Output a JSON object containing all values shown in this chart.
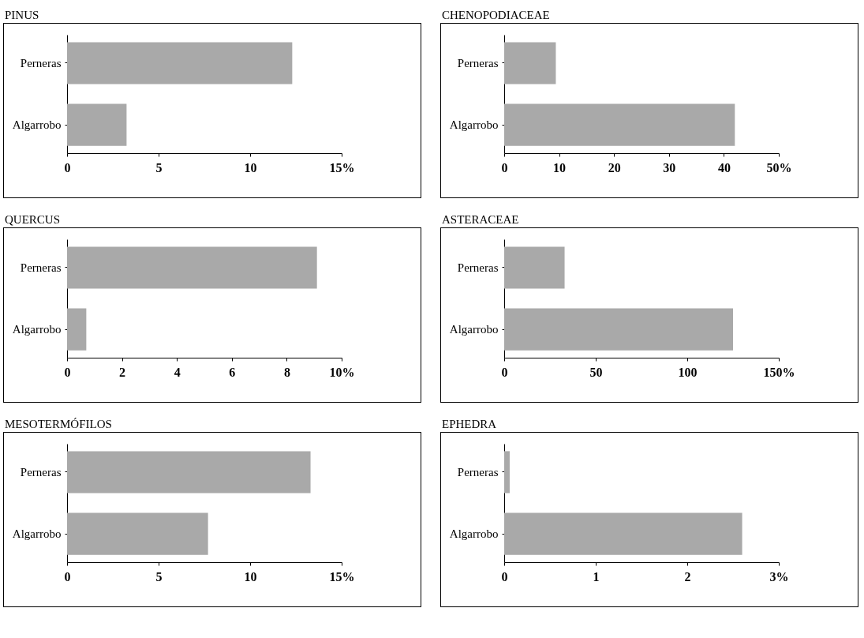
{
  "chart_data": [
    {
      "type": "bar",
      "orientation": "horizontal",
      "title": "PINUS",
      "categories": [
        "Perneras",
        "Algarrobo"
      ],
      "values": [
        12.3,
        3.25
      ],
      "color": "#a9a9a9",
      "xlim": [
        0,
        15
      ],
      "xticks": [
        0,
        5,
        10,
        {
          "value": 15,
          "label": "15%"
        }
      ]
    },
    {
      "type": "bar",
      "orientation": "horizontal",
      "title": "CHENOPODIACEAE",
      "categories": [
        "Perneras",
        "Algarrobo"
      ],
      "values": [
        9.4,
        42
      ],
      "color": "#a9a9a9",
      "xlim": [
        0,
        50
      ],
      "xticks": [
        0,
        10,
        20,
        30,
        40,
        {
          "value": 50,
          "label": "50%"
        }
      ]
    },
    {
      "type": "bar",
      "orientation": "horizontal",
      "title": "QUERCUS",
      "categories": [
        "Perneras",
        "Algarrobo"
      ],
      "values": [
        9.1,
        0.7
      ],
      "color": "#a9a9a9",
      "xlim": [
        0,
        10
      ],
      "xticks": [
        0,
        2,
        4,
        6,
        8,
        {
          "value": 10,
          "label": "10%"
        }
      ]
    },
    {
      "type": "bar",
      "orientation": "horizontal",
      "title": "ASTERACEAE",
      "categories": [
        "Perneras",
        "Algarrobo"
      ],
      "values": [
        33,
        125
      ],
      "color": "#a9a9a9",
      "xlim": [
        0,
        150
      ],
      "xticks": [
        0,
        50,
        100,
        {
          "value": 150,
          "label": "150%"
        }
      ]
    },
    {
      "type": "bar",
      "orientation": "horizontal",
      "title": "MESOTERMÓFILOS",
      "categories": [
        "Perneras",
        "Algarrobo"
      ],
      "values": [
        13.3,
        7.7
      ],
      "color": "#a9a9a9",
      "xlim": [
        0,
        15
      ],
      "xticks": [
        0,
        5,
        10,
        {
          "value": 15,
          "label": "15%"
        }
      ]
    },
    {
      "type": "bar",
      "orientation": "horizontal",
      "title": "EPHEDRA",
      "categories": [
        "Perneras",
        "Algarrobo"
      ],
      "values": [
        0.06,
        2.6
      ],
      "color": "#a9a9a9",
      "xlim": [
        0,
        3
      ],
      "xticks": [
        0,
        1,
        2,
        {
          "value": 3,
          "label": "3%"
        }
      ]
    }
  ]
}
